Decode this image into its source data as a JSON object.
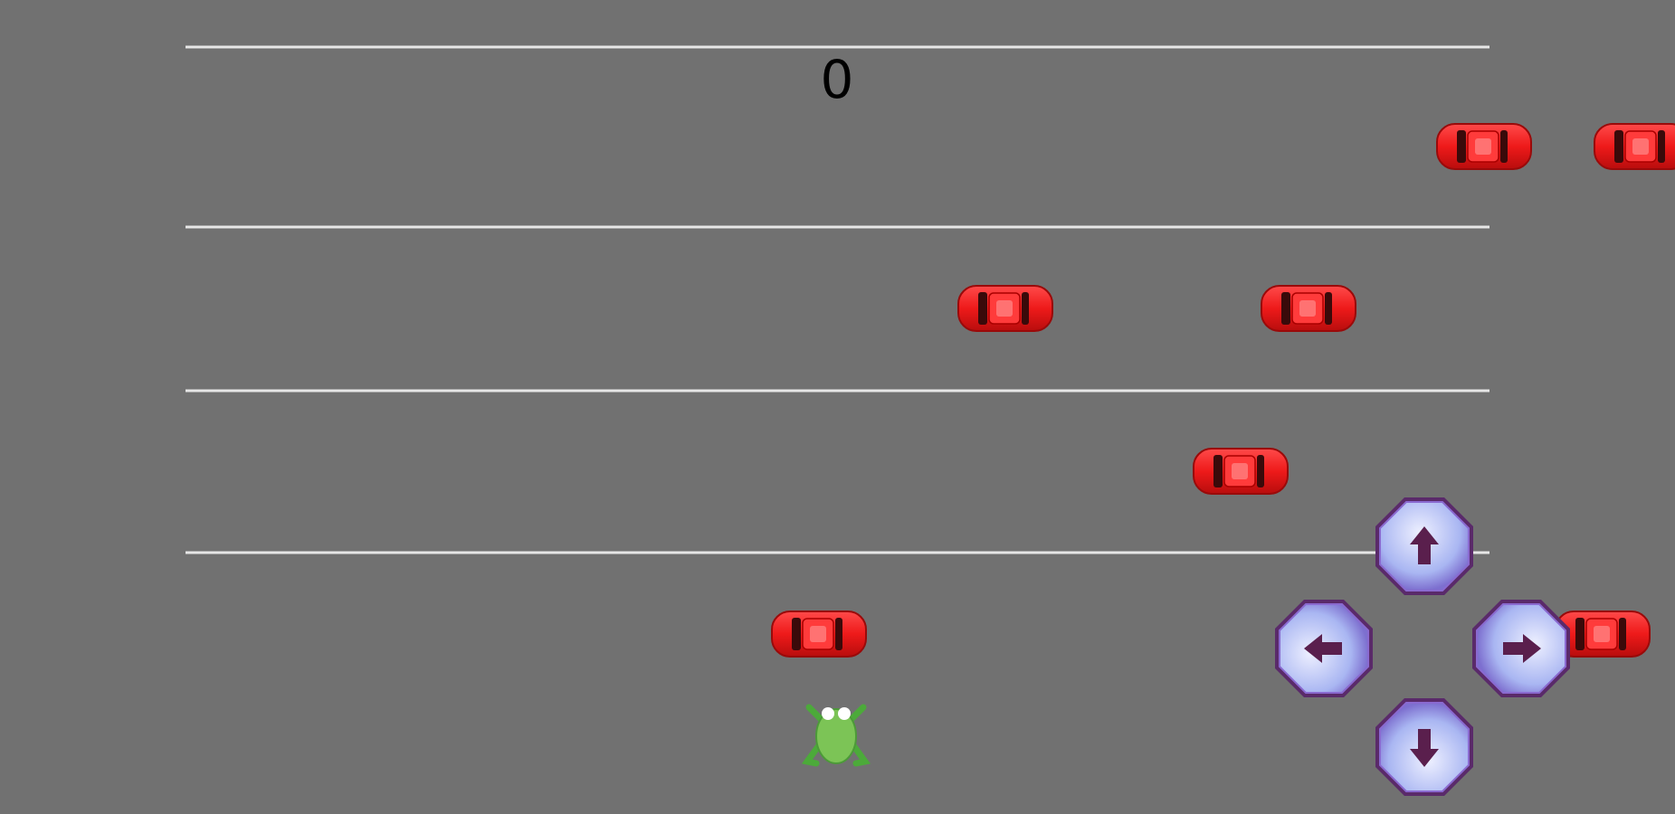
{
  "score": 0
}
